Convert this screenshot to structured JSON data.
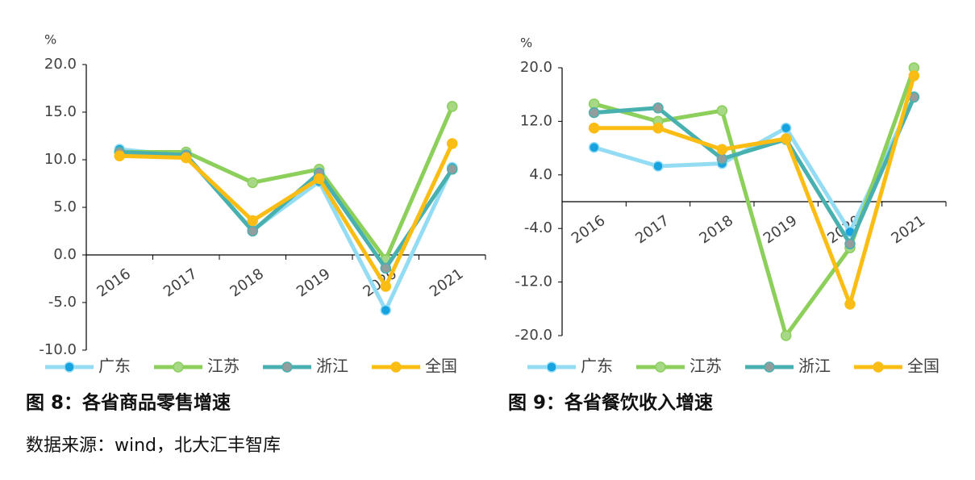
{
  "chart_data": [
    {
      "type": "line",
      "title": "图 8：各省商品零售增速",
      "y_label": "%",
      "categories": [
        "2016",
        "2017",
        "2018",
        "2019",
        "2020",
        "2021"
      ],
      "series": [
        {
          "name": "广东",
          "color": "#93dcf3",
          "marker_color": "#17a2e0",
          "values": [
            11.1,
            10.4,
            2.6,
            7.7,
            -5.8,
            9.2
          ]
        },
        {
          "name": "江苏",
          "color": "#8ccf5b",
          "marker_color": "#a6d886",
          "values": [
            10.8,
            10.8,
            7.6,
            9.0,
            -0.5,
            15.6
          ]
        },
        {
          "name": "浙江",
          "color": "#48b1b0",
          "marker_color": "#939d9d",
          "values": [
            10.8,
            10.5,
            2.5,
            8.6,
            -1.4,
            9.0
          ]
        },
        {
          "name": "全国",
          "color": "#fbbd13",
          "marker_color": "#fbbd13",
          "values": [
            10.4,
            10.2,
            3.6,
            8.0,
            -3.3,
            11.7
          ]
        }
      ],
      "ylim": [
        -10,
        20
      ],
      "yticks": [
        {
          "value": -10,
          "label": "-10.0"
        },
        {
          "value": -5,
          "label": "-5.0"
        },
        {
          "value": 0,
          "label": "0.0"
        },
        {
          "value": 5,
          "label": "5.0"
        },
        {
          "value": 10,
          "label": "10.0"
        },
        {
          "value": 15,
          "label": "15.0"
        },
        {
          "value": 20,
          "label": "20.0"
        }
      ]
    },
    {
      "type": "line",
      "title": "图 9：各省餐饮收入增速",
      "y_label": "%",
      "categories": [
        "2016",
        "2017",
        "2018",
        "2019",
        "2020",
        "2021"
      ],
      "series": [
        {
          "name": "广东",
          "color": "#93dcf3",
          "marker_color": "#17a2e0",
          "values": [
            8.1,
            5.3,
            5.7,
            11.0,
            -4.5,
            15.7
          ]
        },
        {
          "name": "江苏",
          "color": "#8ccf5b",
          "marker_color": "#a6d886",
          "values": [
            14.6,
            12.0,
            13.6,
            -20,
            -6.9,
            20
          ]
        },
        {
          "name": "浙江",
          "color": "#48b1b0",
          "marker_color": "#939d9d",
          "values": [
            13.3,
            14.0,
            6.4,
            9.3,
            -6.3,
            15.6
          ]
        },
        {
          "name": "全国",
          "color": "#fbbd13",
          "marker_color": "#fbbd13",
          "values": [
            11.0,
            11.0,
            7.8,
            9.4,
            -15.3,
            18.8
          ]
        }
      ],
      "ylim": [
        -20,
        20
      ],
      "yticks": [
        {
          "value": -20,
          "label": "-20.0"
        },
        {
          "value": -12,
          "label": "-12.0"
        },
        {
          "value": -4,
          "label": "-4.0"
        },
        {
          "value": 4,
          "label": "4.0"
        },
        {
          "value": 12,
          "label": "12.0"
        },
        {
          "value": 20,
          "label": "20.0"
        }
      ]
    }
  ],
  "source": "数据来源：wind，北大汇丰智库"
}
